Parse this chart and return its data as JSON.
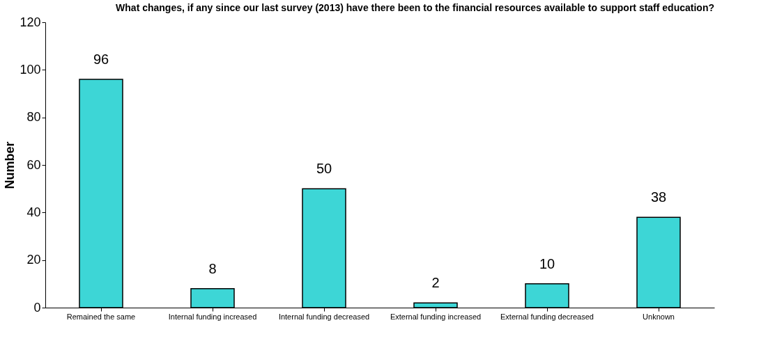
{
  "chart_data": {
    "type": "bar",
    "title": "What changes, if any since our last survey (2013) have there been to the financial resources available to  support staff education?",
    "ylabel": "Number",
    "categories": [
      "Remained the same",
      "Internal funding increased",
      "Internal funding decreased",
      "External funding increased",
      "External funding decreased",
      "Unknown"
    ],
    "values": [
      96,
      8,
      50,
      2,
      10,
      38
    ],
    "color": "#3dd6d6",
    "ylim": [
      0,
      120
    ],
    "yticks": [
      0,
      20,
      40,
      60,
      80,
      100,
      120
    ],
    "grid": false,
    "data_labels": true
  }
}
